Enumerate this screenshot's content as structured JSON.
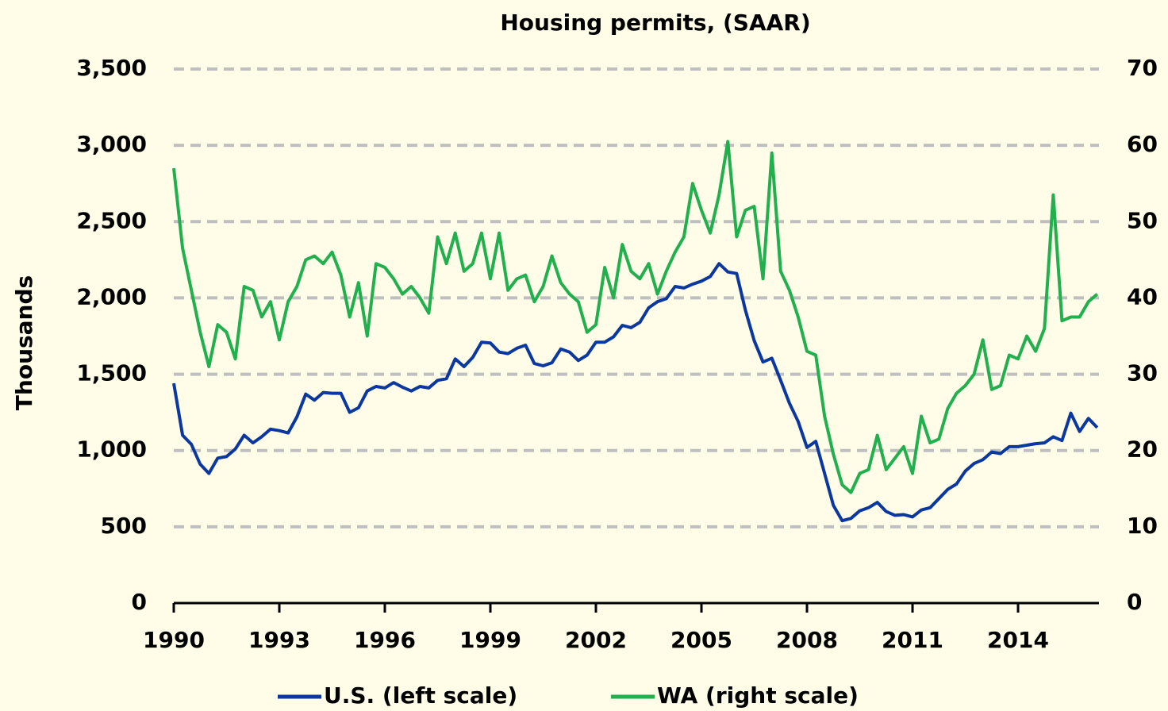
{
  "chart_data": {
    "type": "line",
    "title": "Housing permits, (SAAR)",
    "y_label": "Thousands",
    "x": [
      1990,
      1990.25,
      1990.5,
      1990.75,
      1991,
      1991.25,
      1991.5,
      1991.75,
      1992,
      1992.25,
      1992.5,
      1992.75,
      1993,
      1993.25,
      1993.5,
      1993.75,
      1994,
      1994.25,
      1994.5,
      1994.75,
      1995,
      1995.25,
      1995.5,
      1995.75,
      1996,
      1996.25,
      1996.5,
      1996.75,
      1997,
      1997.25,
      1997.5,
      1997.75,
      1998,
      1998.25,
      1998.5,
      1998.75,
      1999,
      1999.25,
      1999.5,
      1999.75,
      2000,
      2000.25,
      2000.5,
      2000.75,
      2001,
      2001.25,
      2001.5,
      2001.75,
      2002,
      2002.25,
      2002.5,
      2002.75,
      2003,
      2003.25,
      2003.5,
      2003.75,
      2004,
      2004.25,
      2004.5,
      2004.75,
      2005,
      2005.25,
      2005.5,
      2005.75,
      2006,
      2006.25,
      2006.5,
      2006.75,
      2007,
      2007.25,
      2007.5,
      2007.75,
      2008,
      2008.25,
      2008.5,
      2008.75,
      2009,
      2009.25,
      2009.5,
      2009.75,
      2010,
      2010.25,
      2010.5,
      2010.75,
      2011,
      2011.25,
      2011.5,
      2011.75,
      2012,
      2012.25,
      2012.5,
      2012.75,
      2013,
      2013.25,
      2013.5,
      2013.75,
      2014,
      2014.25,
      2014.5,
      2014.75,
      2015,
      2015.25,
      2015.5,
      2015.75,
      2016,
      2016.25
    ],
    "series": [
      {
        "name": "U.S. (left scale)",
        "color": "#0b37a0",
        "values": [
          1440,
          1100,
          1040,
          910,
          850,
          950,
          960,
          1010,
          1100,
          1050,
          1090,
          1140,
          1130,
          1115,
          1220,
          1370,
          1330,
          1380,
          1375,
          1375,
          1250,
          1280,
          1390,
          1420,
          1410,
          1445,
          1415,
          1390,
          1420,
          1410,
          1460,
          1470,
          1600,
          1550,
          1610,
          1710,
          1705,
          1645,
          1635,
          1670,
          1690,
          1570,
          1555,
          1575,
          1665,
          1645,
          1590,
          1625,
          1710,
          1710,
          1745,
          1820,
          1805,
          1840,
          1935,
          1975,
          1995,
          2075,
          2065,
          2090,
          2110,
          2140,
          2225,
          2170,
          2160,
          1920,
          1720,
          1580,
          1605,
          1460,
          1310,
          1190,
          1020,
          1060,
          850,
          640,
          540,
          555,
          605,
          625,
          660,
          600,
          575,
          580,
          565,
          610,
          625,
          685,
          745,
          780,
          865,
          915,
          940,
          990,
          980,
          1025,
          1025,
          1035,
          1045,
          1050,
          1090,
          1065,
          1245,
          1125,
          1210,
          1150
        ]
      },
      {
        "name": "WA (right scale)",
        "color": "#22b04f",
        "axis": "y2",
        "values": [
          57,
          46.5,
          41,
          35.5,
          31,
          36.5,
          35.5,
          32,
          41.5,
          41,
          37.5,
          39.5,
          34.5,
          39.5,
          41.5,
          45,
          45.5,
          44.5,
          46,
          43,
          37.5,
          42,
          35,
          44.5,
          44,
          42.5,
          40.5,
          41.5,
          40,
          38,
          48,
          44.5,
          48.5,
          43.5,
          44.5,
          48.5,
          42.5,
          48.5,
          41,
          42.5,
          43,
          39.5,
          41.5,
          45.5,
          42,
          40.5,
          39.5,
          35.5,
          36.5,
          44,
          40,
          47,
          43.5,
          42.5,
          44.5,
          40.5,
          43.5,
          46,
          48,
          55,
          51.5,
          48.5,
          53.5,
          60.5,
          48,
          51.5,
          52,
          42.5,
          59,
          43.5,
          41,
          37.5,
          33,
          32.5,
          24.5,
          19.5,
          15.5,
          14.5,
          17,
          17.5,
          22,
          17.5,
          19,
          20.5,
          17,
          24.5,
          21,
          21.5,
          25.5,
          27.5,
          28.5,
          30,
          34.5,
          28,
          28.5,
          32.5,
          32,
          35,
          33,
          36,
          53.5,
          37,
          37.5,
          37.5,
          39.5,
          40.5
        ]
      }
    ],
    "xlim": [
      1990,
      2016.3
    ],
    "xticks": [
      1990,
      1993,
      1996,
      1999,
      2002,
      2005,
      2008,
      2011,
      2014
    ],
    "ylim": [
      0,
      3500
    ],
    "yticks": [
      0,
      {
        "value": 500,
        "label": "500"
      },
      {
        "value": 1000,
        "label": "1,000"
      },
      {
        "value": 1500,
        "label": "1,500"
      },
      {
        "value": 2000,
        "label": "2,000"
      },
      {
        "value": 2500,
        "label": "2,500"
      },
      {
        "value": 3000,
        "label": "3,000"
      },
      {
        "value": 3500,
        "label": "3,500"
      }
    ],
    "y2lim": [
      0,
      70
    ],
    "y2ticks": [
      0,
      10,
      20,
      30,
      40,
      50,
      60,
      70
    ],
    "grid": true,
    "legend": "bottom"
  }
}
